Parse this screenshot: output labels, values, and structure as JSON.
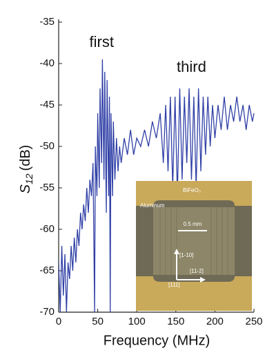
{
  "chart_data": {
    "type": "line",
    "xlabel": "Frequency  (MHz)",
    "ylabel": {
      "symbol": "S",
      "subscript": "12",
      "unit": "(dB)"
    },
    "annotations": [
      {
        "text": "first",
        "x": 55,
        "y": -37.5
      },
      {
        "text": "third",
        "x": 170,
        "y": -40.5
      }
    ],
    "x": [
      0,
      2,
      4,
      6,
      8,
      10,
      12,
      14,
      16,
      18,
      20,
      22,
      24,
      26,
      28,
      30,
      32,
      34,
      36,
      38,
      40,
      42,
      44,
      46,
      47,
      49,
      50,
      52,
      53,
      55,
      56,
      58,
      59,
      61,
      62,
      64,
      65,
      66,
      67,
      69,
      70,
      72,
      74,
      76,
      78,
      80,
      84,
      88,
      92,
      96,
      100,
      105,
      110,
      115,
      120,
      125,
      130,
      134,
      137,
      140,
      143,
      146,
      149,
      152,
      155,
      158,
      161,
      164,
      167,
      170,
      173,
      176,
      179,
      182,
      185,
      188,
      191,
      194,
      197,
      200,
      204,
      208,
      212,
      216,
      220,
      224,
      228,
      232,
      236,
      240,
      244,
      248,
      250
    ],
    "series": [
      {
        "color": "#2f3fa6",
        "values": [
          -64,
          -70,
          -62,
          -68,
          -63,
          -70,
          -64,
          -66,
          -62,
          -65,
          -61,
          -64,
          -60,
          -62,
          -58,
          -60,
          -57,
          -59,
          -55,
          -58,
          -54,
          -56,
          -52,
          -70,
          -50,
          -56,
          -46,
          -55,
          -43,
          -52,
          -39.5,
          -54,
          -41,
          -58,
          -42,
          -56,
          -44,
          -70,
          -46,
          -56,
          -47,
          -54,
          -49,
          -53,
          -50,
          -52,
          -49,
          -51,
          -48,
          -51,
          -49,
          -50,
          -48,
          -50,
          -47,
          -49,
          -46,
          -52,
          -45,
          -53,
          -44,
          -55,
          -44,
          -56,
          -43,
          -54,
          -44,
          -52,
          -43,
          -54,
          -44,
          -55,
          -43,
          -53,
          -44,
          -51,
          -44,
          -50,
          -45,
          -49,
          -45,
          -48,
          -44,
          -48,
          -45,
          -47,
          -44,
          -47,
          -45,
          -48,
          -45,
          -47,
          -46
        ]
      }
    ],
    "xlim": [
      0,
      250
    ],
    "xticks": [
      0,
      50,
      100,
      150,
      200,
      250
    ],
    "ylim": [
      -70,
      -35
    ],
    "yticks": [
      -70,
      -65,
      -60,
      -55,
      -50,
      -45,
      -40,
      -35
    ]
  },
  "inset": {
    "material": "BiFeO₃",
    "electrode": "Aluminum",
    "scale": "0.5 mm",
    "axis_1": "[1-10]",
    "axis_2": "[11-2]",
    "axis_3": "[111]"
  }
}
